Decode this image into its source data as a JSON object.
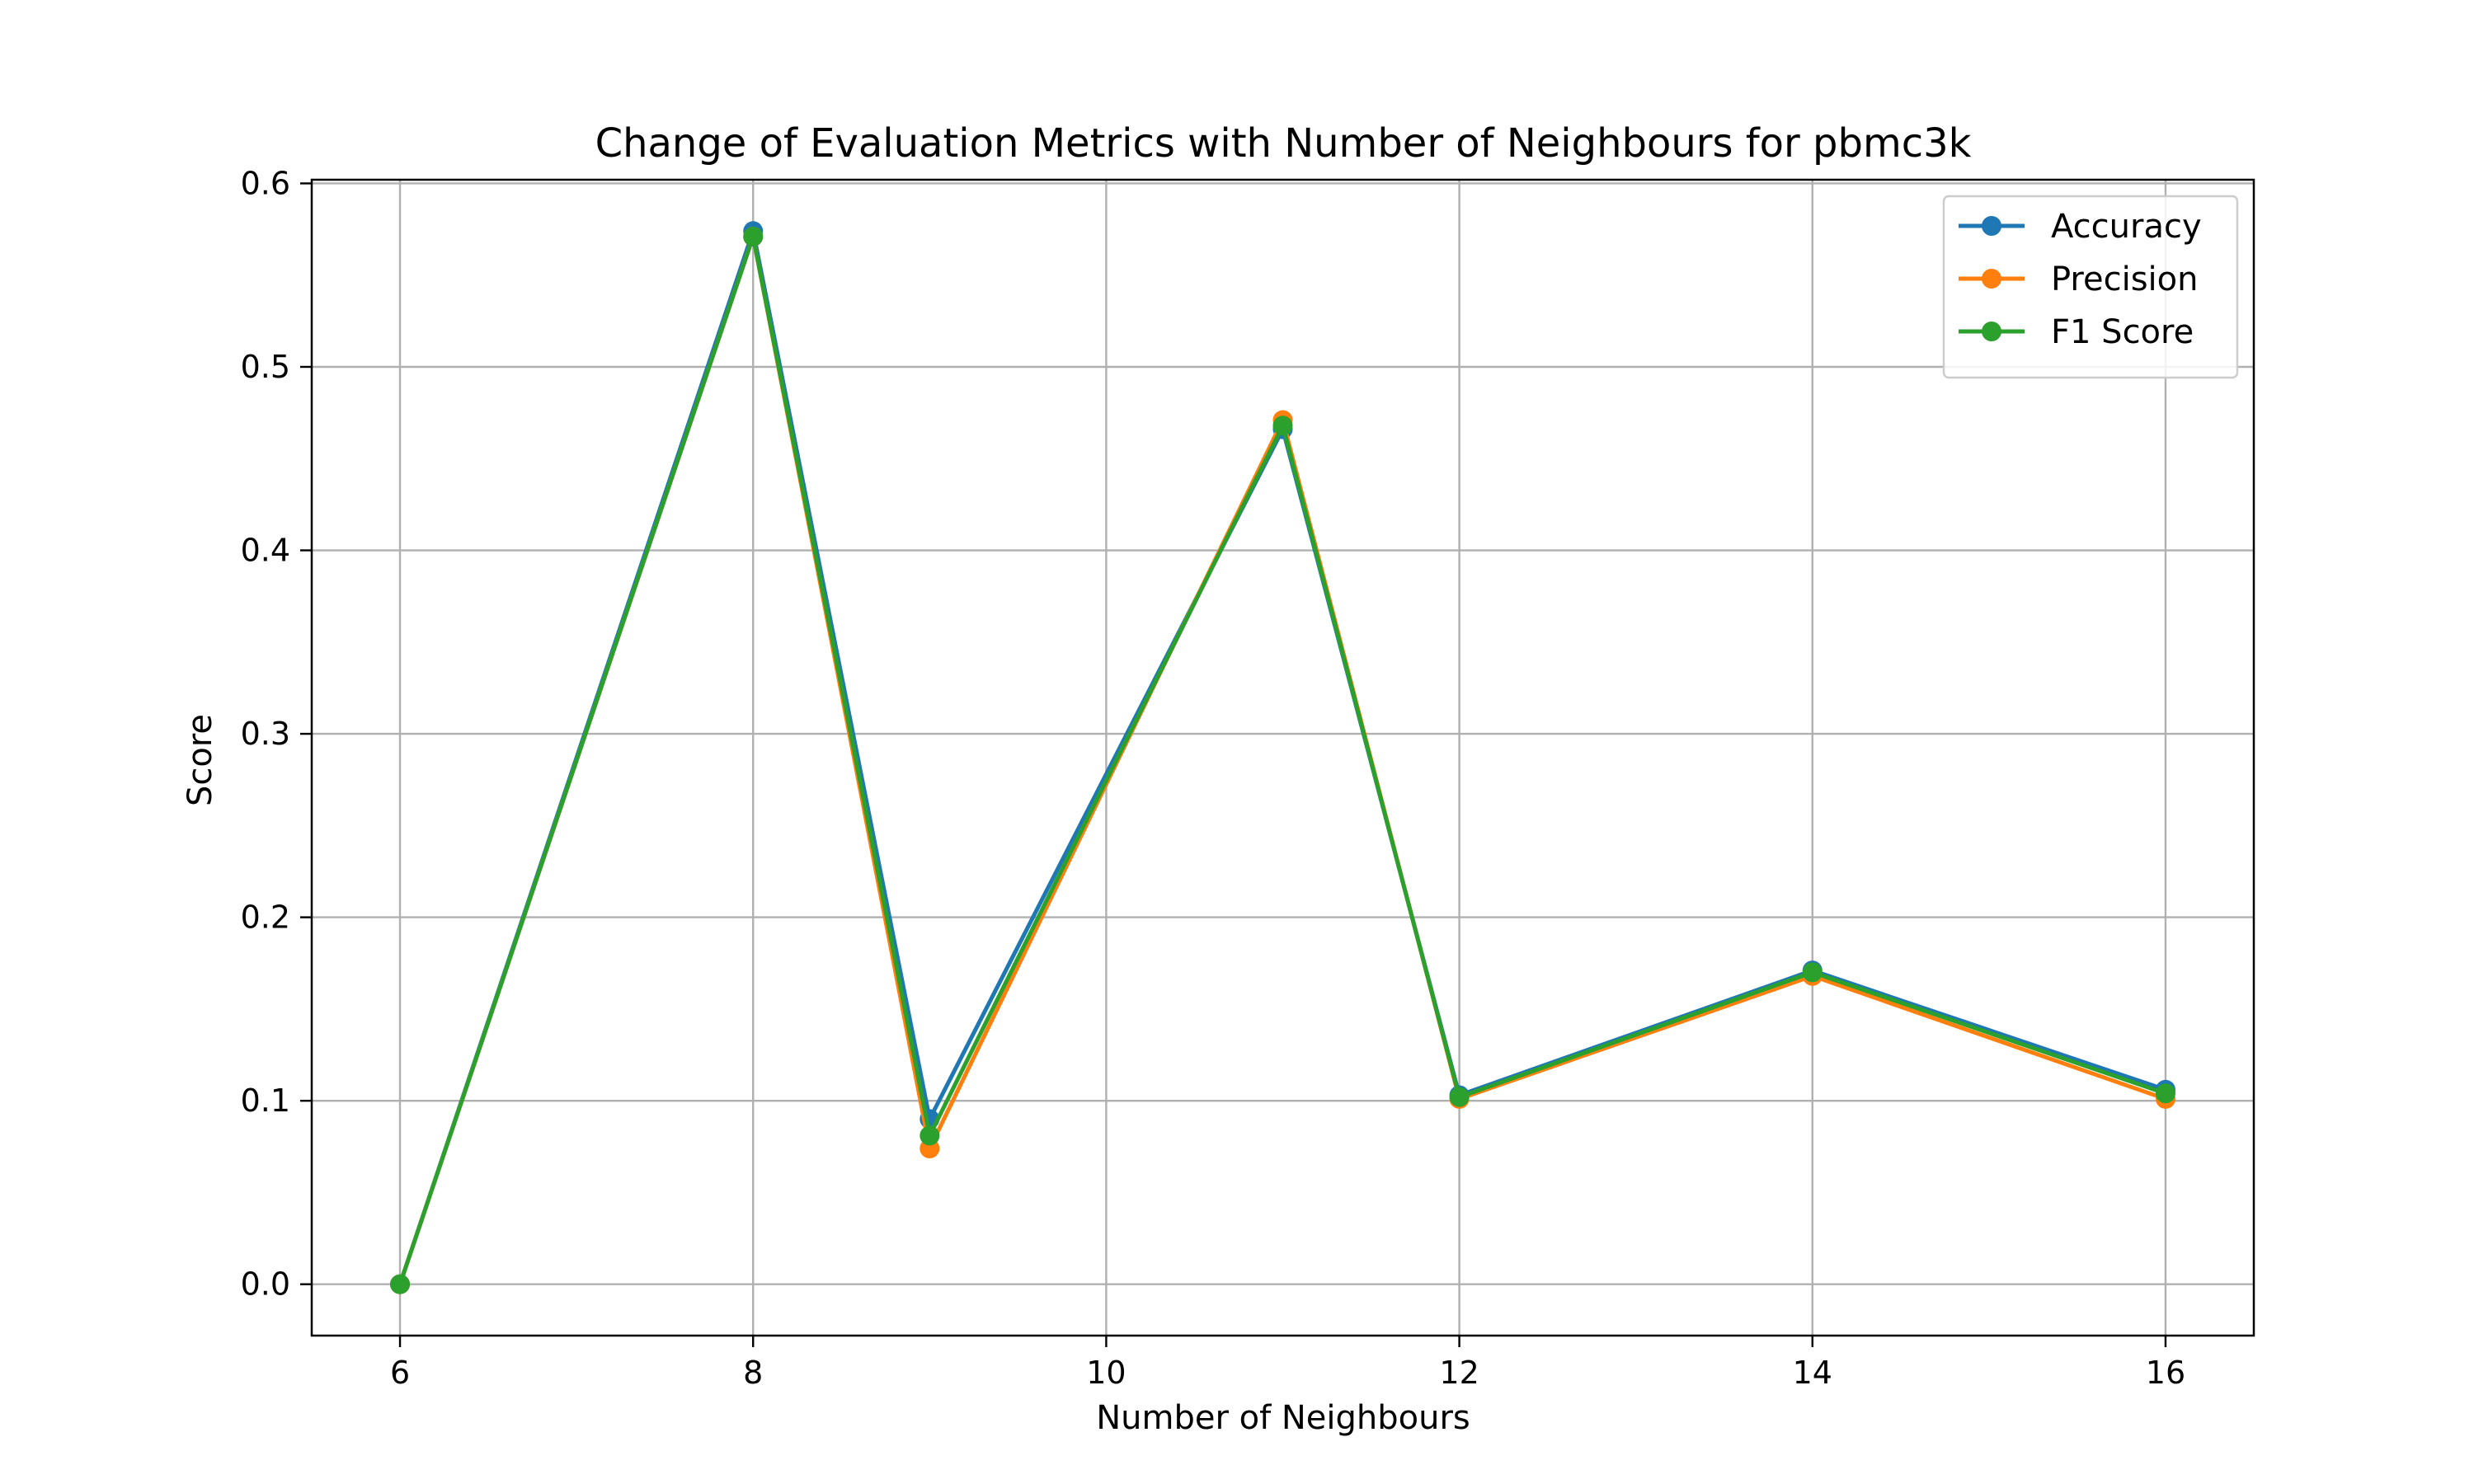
{
  "chart_data": {
    "type": "line",
    "title": "Change of Evaluation Metrics with Number of Neighbours for pbmc3k",
    "xlabel": "Number of Neighbours",
    "ylabel": "Score",
    "x": [
      6,
      8,
      9,
      11,
      12,
      14,
      16
    ],
    "xlim": [
      5.5,
      16.5
    ],
    "ylim": [
      -0.028,
      0.602
    ],
    "xticks": [
      6,
      8,
      10,
      12,
      14,
      16
    ],
    "yticks": [
      0.0,
      0.1,
      0.2,
      0.3,
      0.4,
      0.5,
      0.6
    ],
    "ytick_labels": [
      "0.0",
      "0.1",
      "0.2",
      "0.3",
      "0.4",
      "0.5",
      "0.6"
    ],
    "grid": true,
    "legend_position": "top-right",
    "series": [
      {
        "name": "Accuracy",
        "color": "#1f77b4",
        "values": [
          0.0,
          0.574,
          0.09,
          0.466,
          0.103,
          0.171,
          0.106
        ]
      },
      {
        "name": "Precision",
        "color": "#ff7f0e",
        "values": [
          0.0,
          0.571,
          0.074,
          0.471,
          0.101,
          0.168,
          0.101
        ]
      },
      {
        "name": "F1 Score",
        "color": "#2ca02c",
        "values": [
          0.0,
          0.571,
          0.081,
          0.468,
          0.102,
          0.17,
          0.104
        ]
      }
    ]
  }
}
